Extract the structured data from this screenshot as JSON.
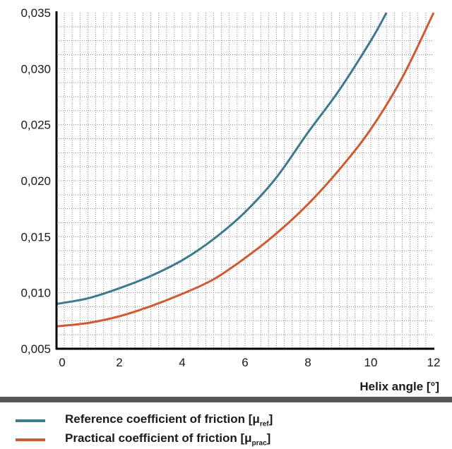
{
  "chart_data": {
    "type": "line",
    "xlabel": "Helix angle [°]",
    "ylabel": "",
    "xlim": [
      0,
      12
    ],
    "ylim": [
      0.005,
      0.035
    ],
    "x_ticks": [
      0,
      2,
      4,
      6,
      8,
      10,
      12
    ],
    "x_tick_labels": [
      "0",
      "2",
      "4",
      "6",
      "8",
      "10",
      "12"
    ],
    "y_ticks": [
      0.005,
      0.01,
      0.015,
      0.02,
      0.025,
      0.03,
      0.035
    ],
    "y_tick_labels": [
      "0,005",
      "0,010",
      "0,015",
      "0,020",
      "0,025",
      "0,030",
      "0,035"
    ],
    "grid": "dotted, minor",
    "series": [
      {
        "name": "Reference coefficient of friction [μref]",
        "legend_main": "Reference coefficient of friction [μ",
        "legend_sub": "ref",
        "legend_end": "]",
        "color": "#3e7a8d",
        "x": [
          0,
          1,
          2,
          3,
          4,
          5,
          6,
          7,
          8,
          9,
          10,
          10.5
        ],
        "y": [
          0.009,
          0.0095,
          0.0104,
          0.0115,
          0.0129,
          0.0148,
          0.0172,
          0.0203,
          0.0243,
          0.0281,
          0.0325,
          0.035
        ]
      },
      {
        "name": "Practical coefficient of friction [μprac]",
        "legend_main": "Practical coefficient of friction [μ",
        "legend_sub": "prac",
        "legend_end": "]",
        "color": "#cf5a33",
        "x": [
          0,
          1,
          2,
          3,
          4,
          5,
          6,
          7,
          8,
          9,
          10,
          11,
          12
        ],
        "y": [
          0.007,
          0.0073,
          0.0079,
          0.0088,
          0.0099,
          0.0112,
          0.0131,
          0.0153,
          0.0179,
          0.021,
          0.0246,
          0.0292,
          0.035
        ]
      }
    ]
  }
}
